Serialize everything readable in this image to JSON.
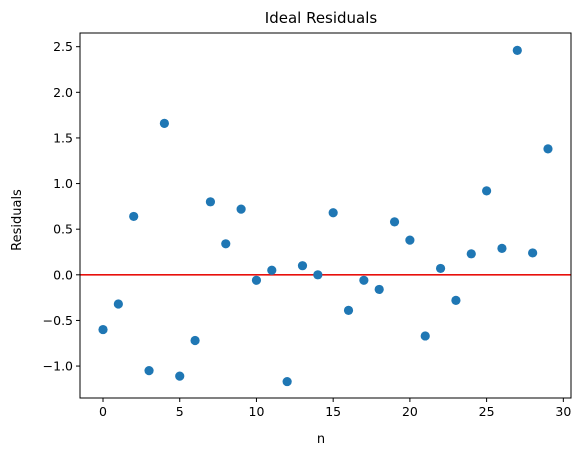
{
  "chart_data": {
    "type": "scatter",
    "title": "Ideal Residuals",
    "xlabel": "n",
    "ylabel": "Residuals",
    "xlim": [
      -1.5,
      30.5
    ],
    "ylim": [
      -1.35,
      2.65
    ],
    "xticks": [
      0,
      5,
      10,
      15,
      20,
      25,
      30
    ],
    "yticks": [
      -1.0,
      -0.5,
      0.0,
      0.5,
      1.0,
      1.5,
      2.0,
      2.5
    ],
    "ytick_labels": [
      "−1.0",
      "−0.5",
      "0.0",
      "0.5",
      "1.0",
      "1.5",
      "2.0",
      "2.5"
    ],
    "grid": false,
    "reference_line": {
      "y": 0,
      "color": "#e8100c"
    },
    "series": [
      {
        "color": "#1f77b4",
        "x": [
          0,
          1,
          2,
          3,
          4,
          5,
          6,
          7,
          8,
          9,
          10,
          11,
          12,
          13,
          14,
          15,
          16,
          17,
          18,
          19,
          20,
          21,
          22,
          23,
          24,
          25,
          26,
          27,
          28,
          29
        ],
        "y": [
          -0.6,
          -0.32,
          0.64,
          -1.05,
          1.66,
          -1.11,
          -0.72,
          0.8,
          0.34,
          0.72,
          -0.06,
          0.05,
          -1.17,
          0.1,
          0.0,
          0.68,
          -0.39,
          -0.06,
          -0.16,
          0.58,
          0.38,
          -0.67,
          0.07,
          -0.28,
          0.23,
          0.92,
          0.29,
          2.46,
          0.24,
          1.38
        ]
      }
    ]
  }
}
